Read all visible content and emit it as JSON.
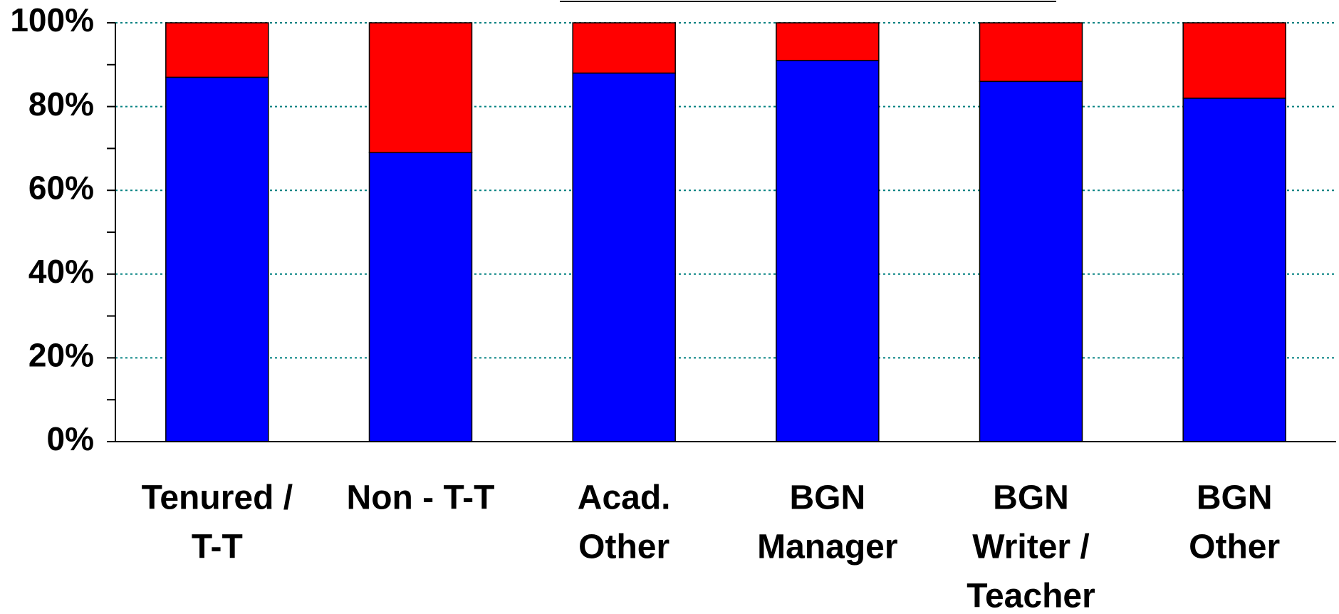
{
  "chart_data": {
    "type": "stacked_bar",
    "categories": [
      [
        "Tenured /",
        "T-T"
      ],
      [
        "Non - T-T"
      ],
      [
        "Acad.",
        "Other"
      ],
      [
        "BGN",
        "Manager"
      ],
      [
        "BGN",
        "Writer /",
        "Teacher"
      ],
      [
        "BGN",
        "Other"
      ]
    ],
    "series": [
      {
        "color": "#0000ff",
        "values": [
          87,
          69,
          88,
          91,
          86,
          82
        ]
      },
      {
        "color": "#ff0000",
        "values": [
          13,
          31,
          12,
          9,
          14,
          18
        ]
      }
    ],
    "ylim": [
      0,
      100
    ],
    "yticks": [
      {
        "value": 0,
        "label": "0%"
      },
      {
        "value": 20,
        "label": "20%"
      },
      {
        "value": 40,
        "label": "40%"
      },
      {
        "value": 60,
        "label": "60%"
      },
      {
        "value": 80,
        "label": "80%"
      },
      {
        "value": 100,
        "label": "100%"
      }
    ],
    "yminor_ticks": [
      10,
      30,
      50,
      70,
      90
    ],
    "grid": true,
    "grid_color": "#008080"
  }
}
